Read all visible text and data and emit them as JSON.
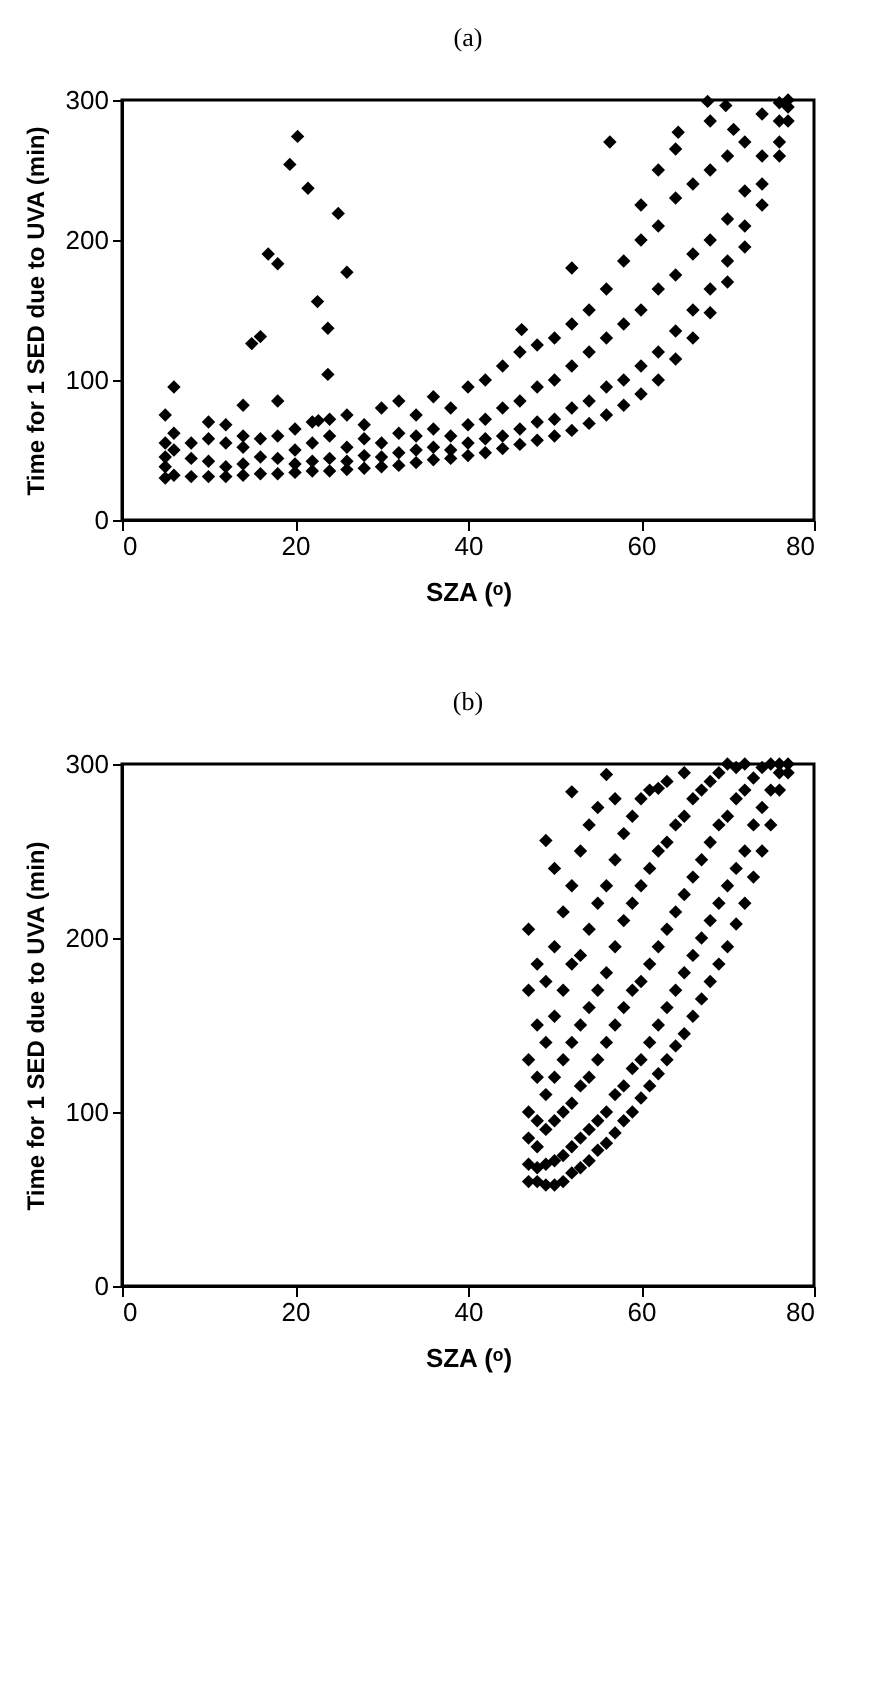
{
  "chart_data": [
    {
      "type": "scatter",
      "title": "(a)",
      "xlabel": "SZA (ᵒ)",
      "ylabel": "Time for 1 SED due to UVA (min)",
      "xlim": [
        0,
        80
      ],
      "xticks": [
        0,
        20,
        40,
        60,
        80
      ],
      "ylim": [
        0,
        300
      ],
      "yticks": [
        0,
        100,
        200,
        300
      ],
      "marker": "diamond",
      "series": [
        {
          "color": "#000000",
          "x": [
            5,
            5,
            5,
            5,
            5,
            6,
            6,
            6,
            6,
            8,
            8,
            8,
            10,
            10,
            10,
            10,
            12,
            12,
            12,
            12,
            14,
            14,
            14,
            14,
            14,
            16,
            16,
            16,
            18,
            18,
            18,
            18,
            20,
            20,
            20,
            20,
            22,
            22,
            22,
            22,
            24,
            24,
            24,
            24,
            26,
            26,
            26,
            26,
            28,
            28,
            28,
            28,
            30,
            30,
            30,
            30,
            32,
            32,
            32,
            32,
            34,
            34,
            34,
            34,
            36,
            36,
            36,
            36,
            38,
            38,
            38,
            38,
            40,
            40,
            40,
            40,
            42,
            42,
            42,
            42,
            44,
            44,
            44,
            44,
            46,
            46,
            46,
            46,
            48,
            48,
            48,
            48,
            50,
            50,
            50,
            50,
            52,
            52,
            52,
            52,
            54,
            54,
            54,
            54,
            56,
            56,
            56,
            56,
            58,
            58,
            58,
            58,
            60,
            60,
            60,
            60,
            60,
            62,
            62,
            62,
            62,
            62,
            64,
            64,
            64,
            64,
            64,
            66,
            66,
            66,
            66,
            68,
            68,
            68,
            68,
            68,
            70,
            70,
            70,
            70,
            72,
            72,
            72,
            72,
            74,
            74,
            74,
            74,
            76,
            76,
            76,
            76,
            77,
            77,
            77,
            20.3,
            19.4,
            21.5,
            25,
            16.9,
            18,
            26,
            22.6,
            23.8,
            15,
            16,
            23.8,
            22.7,
            56.4,
            52,
            46.2,
            67.7,
            69.8,
            64.3,
            70.7
          ],
          "values": [
            30,
            38,
            45,
            55,
            75,
            32,
            50,
            62,
            95,
            31,
            44,
            55,
            31,
            42,
            58,
            70,
            31,
            38,
            55,
            68,
            32,
            40,
            52,
            60,
            82,
            33,
            45,
            58,
            33,
            44,
            60,
            85,
            34,
            40,
            50,
            65,
            35,
            42,
            55,
            70,
            35,
            44,
            60,
            72,
            36,
            42,
            52,
            75,
            37,
            46,
            58,
            68,
            38,
            45,
            55,
            80,
            39,
            48,
            62,
            85,
            41,
            50,
            60,
            75,
            43,
            52,
            65,
            88,
            44,
            50,
            60,
            80,
            46,
            55,
            68,
            95,
            48,
            58,
            72,
            100,
            51,
            60,
            80,
            110,
            54,
            65,
            85,
            120,
            57,
            70,
            95,
            125,
            60,
            72,
            100,
            130,
            64,
            80,
            110,
            140,
            69,
            85,
            120,
            150,
            75,
            95,
            130,
            165,
            82,
            100,
            140,
            185,
            90,
            110,
            150,
            200,
            225,
            100,
            120,
            165,
            210,
            250,
            115,
            135,
            175,
            230,
            265,
            130,
            150,
            190,
            240,
            148,
            165,
            200,
            250,
            285,
            170,
            185,
            215,
            260,
            195,
            210,
            235,
            270,
            225,
            240,
            260,
            290,
            260,
            270,
            285,
            298,
            285,
            295,
            300,
            274,
            254,
            237,
            219,
            190,
            183,
            177,
            156,
            137,
            126,
            131,
            104,
            71,
            270,
            180,
            136,
            299,
            296,
            277,
            279
          ]
        }
      ]
    },
    {
      "type": "scatter",
      "title": "(b)",
      "xlabel": "SZA (ᵒ)",
      "ylabel": "Time for 1 SED due to UVA (min)",
      "xlim": [
        0,
        80
      ],
      "xticks": [
        0,
        20,
        40,
        60,
        80
      ],
      "ylim": [
        0,
        300
      ],
      "yticks": [
        0,
        100,
        200,
        300
      ],
      "marker": "diamond",
      "series": [
        {
          "color": "#000000",
          "x": [
            47,
            47,
            47,
            47,
            47,
            47,
            47,
            48,
            48,
            48,
            48,
            48,
            48,
            48,
            49,
            49,
            49,
            49,
            49,
            49,
            49,
            50,
            50,
            50,
            50,
            50,
            50,
            50,
            51,
            51,
            51,
            51,
            51,
            51,
            52,
            52,
            52,
            52,
            52,
            52,
            52,
            53,
            53,
            53,
            53,
            53,
            53,
            54,
            54,
            54,
            54,
            54,
            54,
            55,
            55,
            55,
            55,
            55,
            55,
            56,
            56,
            56,
            56,
            56,
            56,
            57,
            57,
            57,
            57,
            57,
            57,
            58,
            58,
            58,
            58,
            58,
            59,
            59,
            59,
            59,
            59,
            60,
            60,
            60,
            60,
            60,
            61,
            61,
            61,
            61,
            61,
            62,
            62,
            62,
            62,
            62,
            63,
            63,
            63,
            63,
            63,
            64,
            64,
            64,
            64,
            65,
            65,
            65,
            65,
            65,
            66,
            66,
            66,
            66,
            67,
            67,
            67,
            67,
            68,
            68,
            68,
            68,
            69,
            69,
            69,
            69,
            70,
            70,
            70,
            70,
            71,
            71,
            71,
            71,
            72,
            72,
            72,
            72,
            73,
            73,
            73,
            74,
            74,
            74,
            75,
            75,
            75,
            76,
            76,
            76,
            77,
            77
          ],
          "values": [
            60,
            70,
            85,
            100,
            130,
            170,
            205,
            60,
            68,
            80,
            95,
            120,
            150,
            185,
            58,
            70,
            90,
            110,
            140,
            175,
            256,
            58,
            72,
            95,
            120,
            155,
            195,
            240,
            60,
            75,
            100,
            130,
            170,
            215,
            65,
            80,
            105,
            140,
            185,
            230,
            284,
            68,
            85,
            115,
            150,
            190,
            250,
            72,
            90,
            120,
            160,
            205,
            265,
            78,
            95,
            130,
            170,
            220,
            275,
            82,
            100,
            140,
            180,
            230,
            294,
            88,
            110,
            150,
            195,
            245,
            280,
            95,
            115,
            160,
            210,
            260,
            100,
            125,
            170,
            220,
            270,
            108,
            130,
            175,
            230,
            280,
            115,
            140,
            185,
            240,
            285,
            122,
            150,
            195,
            250,
            286,
            130,
            160,
            205,
            255,
            290,
            138,
            170,
            215,
            265,
            145,
            180,
            225,
            270,
            295,
            155,
            190,
            235,
            280,
            165,
            200,
            245,
            285,
            175,
            210,
            255,
            290,
            185,
            220,
            265,
            295,
            195,
            230,
            270,
            300,
            208,
            240,
            280,
            298,
            220,
            250,
            285,
            300,
            235,
            265,
            292,
            250,
            275,
            298,
            265,
            285,
            300,
            285,
            295,
            300,
            300,
            295
          ]
        }
      ]
    }
  ]
}
